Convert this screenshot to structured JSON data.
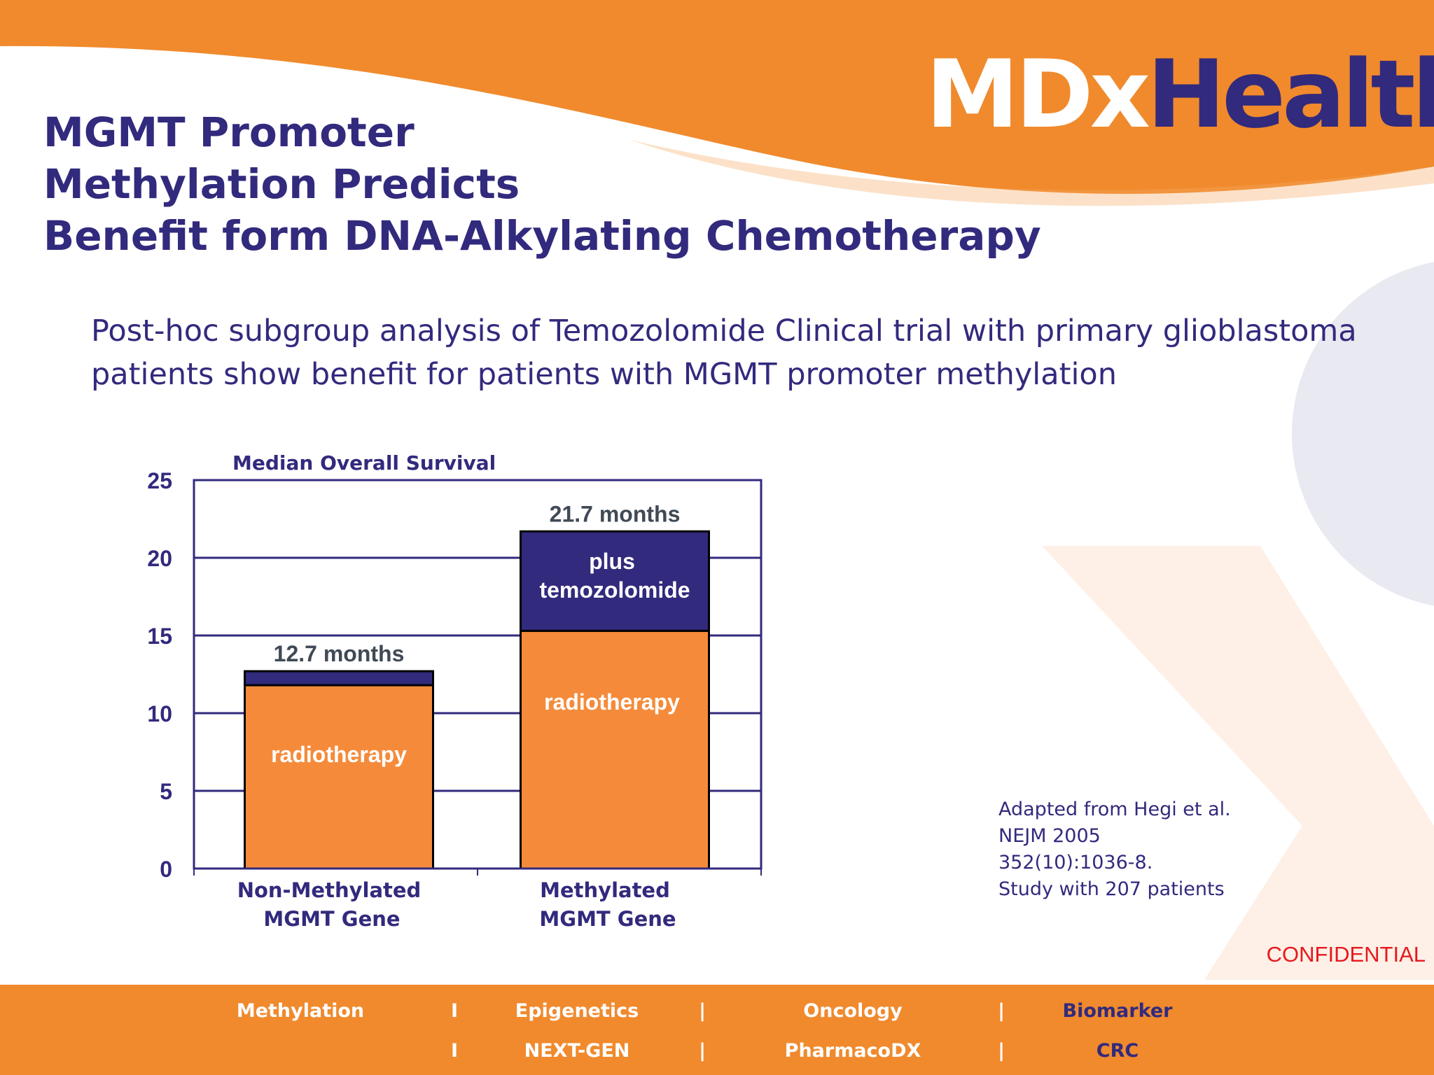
{
  "logo": {
    "part1": "MDx",
    "part2": "Health"
  },
  "title_lines": [
    "MGMT Promoter",
    "Methylation Predicts",
    "Benefit form DNA-Alkylating Chemotherapy"
  ],
  "subtitle_lines": [
    "Post-hoc subgroup analysis of Temozolomide Clinical trial with primary glioblastoma",
    "patients show benefit for patients with MGMT promoter methylation"
  ],
  "colors": {
    "brand_orange": "#f08a2d",
    "bar_orange": "#f58b3a",
    "navy": "#322a7d",
    "confidential_red": "#e6191e"
  },
  "chart_data": {
    "type": "bar",
    "stacked": true,
    "title": "Median Overall Survival",
    "ylim": [
      0,
      25
    ],
    "yticks": [
      "0",
      "5",
      "10",
      "15",
      "20",
      "25"
    ],
    "ytick_values": [
      0,
      5,
      10,
      15,
      20,
      25
    ],
    "grid": true,
    "categories": [
      {
        "line1": "Non-Methylated",
        "line2": "MGMT Gene"
      },
      {
        "line1": "Methylated",
        "line2": "MGMT Gene"
      }
    ],
    "series": [
      {
        "label": "radiotherapy",
        "values": [
          11.8,
          15.3
        ]
      },
      {
        "label_line1": "plus",
        "label_line2": "temozolomide",
        "values": [
          0.9,
          6.4
        ]
      }
    ],
    "totals": [
      12.7,
      21.7
    ],
    "total_labels": [
      "12.7 months",
      "21.7 months"
    ]
  },
  "citation_lines": [
    "Adapted from Hegi et al.",
    "NEJM 2005",
    "352(10):1036-8.",
    "Study with 207 patients"
  ],
  "confidential": "CONFIDENTIAL",
  "footer": {
    "row1": [
      "Methylation",
      "I",
      "Epigenetics",
      "|",
      "Oncology",
      "|",
      "Biomarker"
    ],
    "row2": [
      "I",
      "NEXT-GEN",
      "|",
      "PharmacoDX",
      "|",
      "CRC"
    ]
  }
}
